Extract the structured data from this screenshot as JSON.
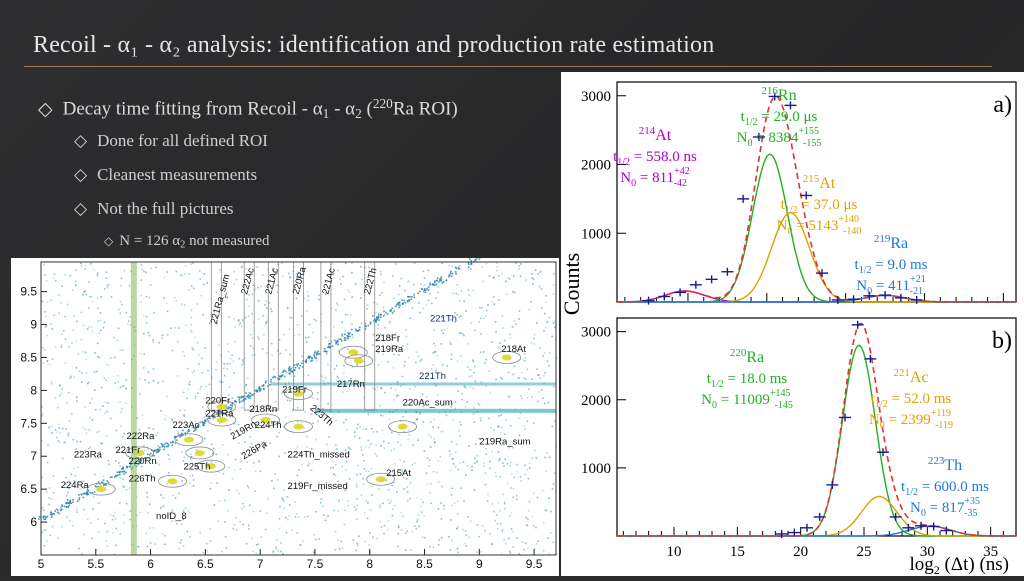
{
  "slide": {
    "title": "Recoil - α₁ - α₂ analysis: identification and production rate estimation",
    "bullets": {
      "main": {
        "pre": "Decay time fitting from Recoil - α",
        "s1": "1",
        "mid": " - α",
        "s2": "2",
        "mid2": " (",
        "sup": "220",
        "post": "Ra ROI)"
      },
      "sub1": "Done for all defined ROI",
      "sub2": "Cleanest measurements",
      "sub3": "Not the full pictures",
      "sub4": {
        "pre": "N = 126 α",
        "s": "2",
        "post": " not measured"
      }
    }
  },
  "matrix": {
    "x_ticks": [
      "5",
      "5.5",
      "6",
      "6.5",
      "7",
      "7.5",
      "8",
      "8.5",
      "9",
      "9.5"
    ],
    "y_ticks": [
      "9.5",
      "9",
      "8.5",
      "8",
      "7.5",
      "7",
      "6.5",
      "6"
    ],
    "xlim": [
      5,
      9.7
    ],
    "ylim": [
      5.5,
      9.95
    ],
    "roi_labels": [
      {
        "text": "221Ra_sum",
        "x": 6.6,
        "y": 9.0,
        "rot": -75
      },
      {
        "text": "222Ac",
        "x": 6.88,
        "y": 9.45,
        "rot": -75
      },
      {
        "text": "221Ac",
        "x": 7.1,
        "y": 9.45,
        "rot": -75
      },
      {
        "text": "220Ra",
        "x": 7.35,
        "y": 9.45,
        "rot": -75
      },
      {
        "text": "221Ac",
        "x": 7.62,
        "y": 9.45,
        "rot": -75
      },
      {
        "text": "222Th",
        "x": 8.0,
        "y": 9.45,
        "rot": -75
      },
      {
        "text": "221Th",
        "x": 8.55,
        "y": 9.05,
        "rot": 0
      },
      {
        "text": "218Fr",
        "x": 8.05,
        "y": 8.75,
        "rot": 0
      },
      {
        "text": "219Ra",
        "x": 8.05,
        "y": 8.58,
        "rot": 0
      },
      {
        "text": "218At",
        "x": 9.2,
        "y": 8.58,
        "rot": 0
      },
      {
        "text": "217Rn",
        "x": 7.7,
        "y": 8.05,
        "rot": 0
      },
      {
        "text": "221Th",
        "x": 8.45,
        "y": 8.17,
        "rot": 0
      },
      {
        "text": "219Fr",
        "x": 7.2,
        "y": 7.97,
        "rot": 0
      },
      {
        "text": "223Th",
        "x": 7.45,
        "y": 7.72,
        "rot": 40
      },
      {
        "text": "220Fr",
        "x": 6.5,
        "y": 7.8,
        "rot": 0
      },
      {
        "text": "221Ra",
        "x": 6.5,
        "y": 7.6,
        "rot": 0
      },
      {
        "text": "218Rn",
        "x": 6.9,
        "y": 7.67,
        "rot": 0
      },
      {
        "text": "220Ac_sum",
        "x": 8.3,
        "y": 7.77,
        "rot": 0
      },
      {
        "text": "223Ac",
        "x": 6.2,
        "y": 7.43,
        "rot": 0
      },
      {
        "text": "224Th",
        "x": 6.95,
        "y": 7.43,
        "rot": 0
      },
      {
        "text": "222Ra",
        "x": 5.78,
        "y": 7.26,
        "rot": 0
      },
      {
        "text": "219Rn",
        "x": 6.75,
        "y": 7.25,
        "rot": -30
      },
      {
        "text": "221Fr",
        "x": 5.68,
        "y": 7.05,
        "rot": 0
      },
      {
        "text": "223Ra",
        "x": 5.3,
        "y": 6.98,
        "rot": 0
      },
      {
        "text": "220Rn",
        "x": 5.8,
        "y": 6.88,
        "rot": 0
      },
      {
        "text": "226Pa",
        "x": 6.85,
        "y": 6.95,
        "rot": -30
      },
      {
        "text": "224Th_missed",
        "x": 7.25,
        "y": 6.98,
        "rot": 0
      },
      {
        "text": "219Ra_sum",
        "x": 9.0,
        "y": 7.18,
        "rot": 0
      },
      {
        "text": "225Th",
        "x": 6.3,
        "y": 6.8,
        "rot": 0
      },
      {
        "text": "215At",
        "x": 8.15,
        "y": 6.7,
        "rot": 0
      },
      {
        "text": "226Th",
        "x": 5.8,
        "y": 6.62,
        "rot": 0
      },
      {
        "text": "224Ra",
        "x": 5.18,
        "y": 6.52,
        "rot": 0
      },
      {
        "text": "219Fr_missed",
        "x": 7.25,
        "y": 6.5,
        "rot": 0
      },
      {
        "text": "noID_8",
        "x": 6.05,
        "y": 6.05,
        "rot": 0
      }
    ]
  },
  "chart_data": [
    {
      "type": "line",
      "panel": "a)",
      "ylabel": "Counts",
      "x_ticks": [],
      "y_ticks": [
        1000,
        2000,
        3000
      ],
      "xlim": [
        5.5,
        30.8
      ],
      "ylim": [
        0,
        3200
      ],
      "data_points": [
        {
          "x": 7.5,
          "y": 20
        },
        {
          "x": 8.5,
          "y": 80
        },
        {
          "x": 9.5,
          "y": 140
        },
        {
          "x": 10.5,
          "y": 250
        },
        {
          "x": 11.5,
          "y": 330
        },
        {
          "x": 12.5,
          "y": 440
        },
        {
          "x": 13.5,
          "y": 1500
        },
        {
          "x": 14.5,
          "y": 2400
        },
        {
          "x": 15.5,
          "y": 2990
        },
        {
          "x": 16.5,
          "y": 2860
        },
        {
          "x": 17.5,
          "y": 1550
        },
        {
          "x": 18.5,
          "y": 420
        },
        {
          "x": 19.5,
          "y": 30
        },
        {
          "x": 20.5,
          "y": 40
        },
        {
          "x": 21.5,
          "y": 90
        },
        {
          "x": 22.5,
          "y": 100
        },
        {
          "x": 23.5,
          "y": 60
        },
        {
          "x": 24.5,
          "y": 30
        }
      ],
      "components": [
        {
          "name": "214At",
          "color": "#b000d0",
          "mu": 9.8,
          "sigma": 1.25,
          "amp": 160
        },
        {
          "name": "216Rn",
          "color": "#22b022",
          "mu": 15.2,
          "sigma": 1.1,
          "amp": 2150
        },
        {
          "name": "215At",
          "color": "#e0a000",
          "mu": 16.5,
          "sigma": 1.2,
          "amp": 1300
        },
        {
          "name": "219Ra",
          "color": "#1e78d8",
          "mu": 22.5,
          "sigma": 1.3,
          "amp": 95
        }
      ],
      "total_color": "#e23232",
      "annotations": [
        {
          "iso": "216",
          "el": "Rn",
          "t_val": "29.0 μs",
          "n_val": "8384",
          "plus": "155",
          "minus": "155",
          "color": "#22b022"
        },
        {
          "iso": "214",
          "el": "At",
          "t_val": "558.0 ns",
          "n_val": "811",
          "plus": "42",
          "minus": "42",
          "color": "#b000d0"
        },
        {
          "iso": "215",
          "el": "At",
          "t_val": "37.0 μs",
          "n_val": "5143",
          "plus": "140",
          "minus": "140",
          "color": "#e0a000"
        },
        {
          "iso": "219",
          "el": "Ra",
          "t_val": "9.0 ms",
          "n_val": "411",
          "plus": "21",
          "minus": "21",
          "color": "#1e78d8"
        }
      ]
    },
    {
      "type": "line",
      "panel": "b)",
      "xlabel": "log2 (Δt) (ns)",
      "x_ticks": [
        10,
        15,
        20,
        25,
        30,
        35
      ],
      "y_ticks": [
        1000,
        2000,
        3000
      ],
      "xlim": [
        5.5,
        37
      ],
      "ylim": [
        0,
        3200
      ],
      "data_points": [
        {
          "x": 18.5,
          "y": 30
        },
        {
          "x": 19.5,
          "y": 50
        },
        {
          "x": 20.5,
          "y": 120
        },
        {
          "x": 21.5,
          "y": 280
        },
        {
          "x": 22.5,
          "y": 750
        },
        {
          "x": 23.5,
          "y": 1740
        },
        {
          "x": 24.5,
          "y": 3100
        },
        {
          "x": 25.5,
          "y": 2600
        },
        {
          "x": 26.5,
          "y": 1230
        },
        {
          "x": 27.5,
          "y": 280
        },
        {
          "x": 28.5,
          "y": 120
        },
        {
          "x": 29.5,
          "y": 150
        },
        {
          "x": 30.5,
          "y": 140
        },
        {
          "x": 31.5,
          "y": 80
        }
      ],
      "components": [
        {
          "name": "220Ra",
          "color": "#22b022",
          "mu": 24.6,
          "sigma": 1.3,
          "amp": 2800
        },
        {
          "name": "221Ac",
          "color": "#e0a000",
          "mu": 26.2,
          "sigma": 1.4,
          "amp": 580
        },
        {
          "name": "223Th",
          "color": "#1e78d8",
          "mu": 30.2,
          "sigma": 1.6,
          "amp": 145
        }
      ],
      "total_color": "#e23232",
      "annotations": [
        {
          "iso": "220",
          "el": "Ra",
          "t_val": "18.0 ms",
          "n_val": "11009",
          "plus": "145",
          "minus": "145",
          "color": "#22b022"
        },
        {
          "iso": "221",
          "el": "Ac",
          "t_val": "52.0 ms",
          "n_val": "2399",
          "plus": "119",
          "minus": "119",
          "color": "#e0a000"
        },
        {
          "iso": "223",
          "el": "Th",
          "t_val": "600.0 ms",
          "n_val": "817",
          "plus": "35",
          "minus": "35",
          "color": "#1e78d8"
        }
      ]
    }
  ]
}
